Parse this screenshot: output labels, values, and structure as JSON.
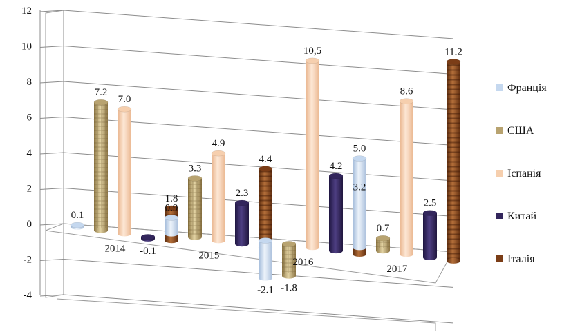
{
  "chart_data": {
    "type": "bar",
    "title": "",
    "xlabel": "",
    "ylabel": "",
    "categories": [
      "2014",
      "2015",
      "2016",
      "2017"
    ],
    "ylim": [
      -4,
      12
    ],
    "yticks": [
      "-4",
      "-2",
      "0",
      "2",
      "4",
      "6",
      "8",
      "10",
      "12"
    ],
    "grid": true,
    "legend_position": "right",
    "series": [
      {
        "name": "Франція",
        "color": "#c5d8ef",
        "values": [
          0.1,
          0.9,
          -2.1,
          5.0
        ],
        "labels": [
          "0.1",
          "0.9",
          "-2.1",
          "5.0"
        ]
      },
      {
        "name": "США",
        "color": "#b8a370",
        "values": [
          7.2,
          3.3,
          -1.8,
          0.7
        ],
        "labels": [
          "7.2",
          "3.3",
          "-1.8",
          "0.7"
        ]
      },
      {
        "name": "Іспанія",
        "color": "#f6cfae",
        "values": [
          7.0,
          4.9,
          10.5,
          8.6
        ],
        "labels": [
          "7.0",
          "4.9",
          "10,5",
          "8.6"
        ]
      },
      {
        "name": "Китай",
        "color": "#33265c",
        "values": [
          -0.1,
          2.3,
          4.2,
          2.5
        ],
        "labels": [
          "-0.1",
          "2.3",
          "4.2",
          "2.5"
        ]
      },
      {
        "name": "Італія",
        "color": "#7b3d17",
        "values": [
          1.8,
          4.4,
          3.2,
          11.2
        ],
        "labels": [
          "1.8",
          "4.4",
          "3.2",
          "11.2"
        ]
      }
    ]
  }
}
